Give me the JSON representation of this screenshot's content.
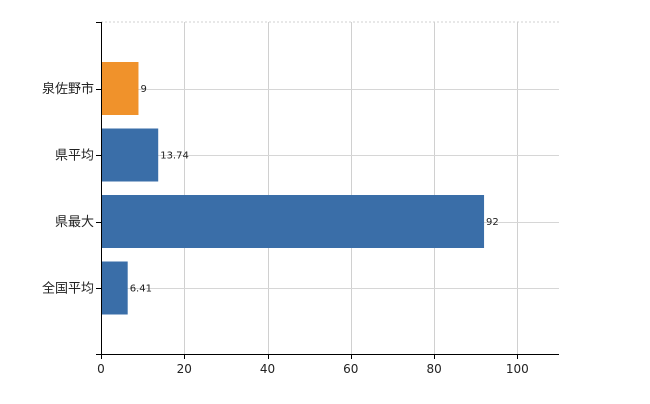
{
  "chart_data": {
    "type": "bar",
    "orientation": "horizontal",
    "categories": [
      "泉佐野市",
      "県平均",
      "県最大",
      "全国平均"
    ],
    "values": [
      9,
      13.74,
      92,
      6.41
    ],
    "value_labels": [
      "9",
      "13.74",
      "92",
      "6.41"
    ],
    "bar_colors": [
      "#f0922b",
      "#3a6ea8",
      "#3a6ea8",
      "#3a6ea8"
    ],
    "xlim": [
      0,
      110
    ],
    "xticks": [
      0,
      20,
      40,
      60,
      80,
      100
    ],
    "grid": true,
    "title": "",
    "xlabel": "",
    "ylabel": ""
  }
}
